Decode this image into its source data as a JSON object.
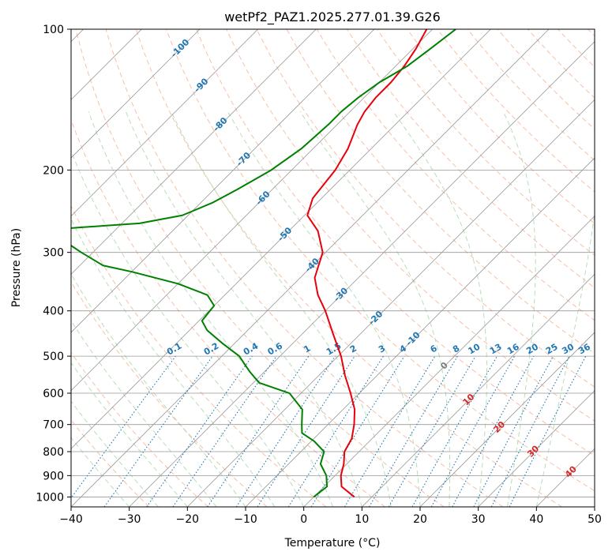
{
  "chart_data": {
    "type": "line",
    "title": "wetPf2_PAZ1.2025.277.01.39.G26",
    "xlabel": "Temperature (°C)",
    "ylabel": "Pressure (hPa)",
    "xlim": [
      -40,
      50
    ],
    "ylim": [
      1050,
      100
    ],
    "skew": 45,
    "x_ticks": [
      -40,
      -30,
      -20,
      -10,
      0,
      10,
      20,
      30,
      40,
      50
    ],
    "x_tick_labels": [
      "−40",
      "−30",
      "−20",
      "−10",
      "0",
      "10",
      "20",
      "30",
      "40",
      "50"
    ],
    "y_ticks": [
      1000,
      900,
      800,
      700,
      600,
      500,
      400,
      300,
      200,
      100
    ],
    "y_tick_labels": [
      "1000",
      "900",
      "800",
      "700",
      "600",
      "500",
      "400",
      "300",
      "200",
      "100"
    ],
    "colors": {
      "temperature": "#e8000b",
      "dewpoint": "#008000",
      "isotherm": "#999999",
      "dry_adiabat": "#f4a582",
      "moist_adiabat": "#a6d6a6",
      "mixing_ratio": "#1f77b4",
      "iso_label_blue": "#1f77b4",
      "iso_label_red": "#d62728",
      "iso_label_gray": "#7f7f7f"
    },
    "series": [
      {
        "name": "Temperature",
        "points": [
          {
            "p": 1000,
            "t": 7.0
          },
          {
            "p": 950,
            "t": 3.0
          },
          {
            "p": 900,
            "t": 1.0
          },
          {
            "p": 850,
            "t": -0.5
          },
          {
            "p": 800,
            "t": -2.5
          },
          {
            "p": 750,
            "t": -3.5
          },
          {
            "p": 700,
            "t": -5.5
          },
          {
            "p": 650,
            "t": -8.0
          },
          {
            "p": 600,
            "t": -11.5
          },
          {
            "p": 550,
            "t": -15.5
          },
          {
            "p": 500,
            "t": -19.5
          },
          {
            "p": 450,
            "t": -24.5
          },
          {
            "p": 400,
            "t": -30.0
          },
          {
            "p": 370,
            "t": -34.0
          },
          {
            "p": 340,
            "t": -37.5
          },
          {
            "p": 300,
            "t": -40.5
          },
          {
            "p": 270,
            "t": -45.0
          },
          {
            "p": 250,
            "t": -49.5
          },
          {
            "p": 230,
            "t": -51.5
          },
          {
            "p": 200,
            "t": -52.5
          },
          {
            "p": 180,
            "t": -54.0
          },
          {
            "p": 160,
            "t": -56.5
          },
          {
            "p": 150,
            "t": -57.5
          },
          {
            "p": 140,
            "t": -58.0
          },
          {
            "p": 130,
            "t": -58.0
          },
          {
            "p": 120,
            "t": -58.5
          },
          {
            "p": 110,
            "t": -59.5
          },
          {
            "p": 100,
            "t": -61.0
          }
        ]
      },
      {
        "name": "Dewpoint",
        "points": [
          {
            "p": 1000,
            "t": 0.0
          },
          {
            "p": 950,
            "t": 0.5
          },
          {
            "p": 900,
            "t": -1.5
          },
          {
            "p": 850,
            "t": -4.5
          },
          {
            "p": 800,
            "t": -6.0
          },
          {
            "p": 760,
            "t": -9.5
          },
          {
            "p": 730,
            "t": -13.0
          },
          {
            "p": 700,
            "t": -14.5
          },
          {
            "p": 650,
            "t": -17.0
          },
          {
            "p": 600,
            "t": -22.0
          },
          {
            "p": 570,
            "t": -29.0
          },
          {
            "p": 540,
            "t": -32.5
          },
          {
            "p": 500,
            "t": -37.0
          },
          {
            "p": 470,
            "t": -42.0
          },
          {
            "p": 440,
            "t": -47.0
          },
          {
            "p": 420,
            "t": -49.5
          },
          {
            "p": 390,
            "t": -50.0
          },
          {
            "p": 370,
            "t": -53.0
          },
          {
            "p": 350,
            "t": -60.0
          },
          {
            "p": 330,
            "t": -70.0
          },
          {
            "p": 320,
            "t": -76.0
          },
          {
            "p": 300,
            "t": -82.0
          },
          {
            "p": 280,
            "t": -88.0
          },
          {
            "p": 268,
            "t": -91.0
          },
          {
            "p": 265,
            "t": -86.0
          },
          {
            "p": 260,
            "t": -77.0
          },
          {
            "p": 250,
            "t": -71.0
          },
          {
            "p": 235,
            "t": -68.0
          },
          {
            "p": 220,
            "t": -66.0
          },
          {
            "p": 200,
            "t": -63.5
          },
          {
            "p": 180,
            "t": -62.0
          },
          {
            "p": 160,
            "t": -61.5
          },
          {
            "p": 150,
            "t": -61.5
          },
          {
            "p": 140,
            "t": -61.0
          },
          {
            "p": 130,
            "t": -60.0
          },
          {
            "p": 120,
            "t": -58.0
          },
          {
            "p": 110,
            "t": -57.0
          },
          {
            "p": 100,
            "t": -56.0
          }
        ]
      }
    ],
    "iso_labels": [
      {
        "text": "-100",
        "t": -100,
        "p": 110,
        "color": "blue"
      },
      {
        "text": "-90",
        "t": -90,
        "p": 132,
        "color": "blue"
      },
      {
        "text": "-80",
        "t": -80,
        "p": 160,
        "color": "blue"
      },
      {
        "text": "-70",
        "t": -70,
        "p": 190,
        "color": "blue"
      },
      {
        "text": "-60",
        "t": -60,
        "p": 230,
        "color": "blue"
      },
      {
        "text": "-50",
        "t": -50,
        "p": 275,
        "color": "blue"
      },
      {
        "text": "-40",
        "t": -40,
        "p": 320,
        "color": "blue"
      },
      {
        "text": "-30",
        "t": -30,
        "p": 370,
        "color": "blue"
      },
      {
        "text": "-20",
        "t": -20,
        "p": 415,
        "color": "blue"
      },
      {
        "text": "-10",
        "t": -10,
        "p": 460,
        "color": "blue"
      },
      {
        "text": "0",
        "t": 0,
        "p": 525,
        "color": "gray"
      },
      {
        "text": "10",
        "t": 10,
        "p": 620,
        "color": "red"
      },
      {
        "text": "20",
        "t": 20,
        "p": 710,
        "color": "red"
      },
      {
        "text": "30",
        "t": 30,
        "p": 800,
        "color": "red"
      },
      {
        "text": "40",
        "t": 40,
        "p": 885,
        "color": "red"
      }
    ],
    "mixing_ratios": [
      {
        "text": "0.1",
        "w": 0.1
      },
      {
        "text": "0.2",
        "w": 0.2
      },
      {
        "text": "0.4",
        "w": 0.4
      },
      {
        "text": "0.6",
        "w": 0.6
      },
      {
        "text": "1",
        "w": 1
      },
      {
        "text": "1.5",
        "w": 1.5
      },
      {
        "text": "2",
        "w": 2
      },
      {
        "text": "3",
        "w": 3
      },
      {
        "text": "4",
        "w": 4
      },
      {
        "text": "6",
        "w": 6
      },
      {
        "text": "8",
        "w": 8
      },
      {
        "text": "10",
        "w": 10
      },
      {
        "text": "13",
        "w": 13
      },
      {
        "text": "16",
        "w": 16
      },
      {
        "text": "20",
        "w": 20
      },
      {
        "text": "25",
        "w": 25
      },
      {
        "text": "30",
        "w": 30
      },
      {
        "text": "36",
        "w": 36
      }
    ]
  }
}
